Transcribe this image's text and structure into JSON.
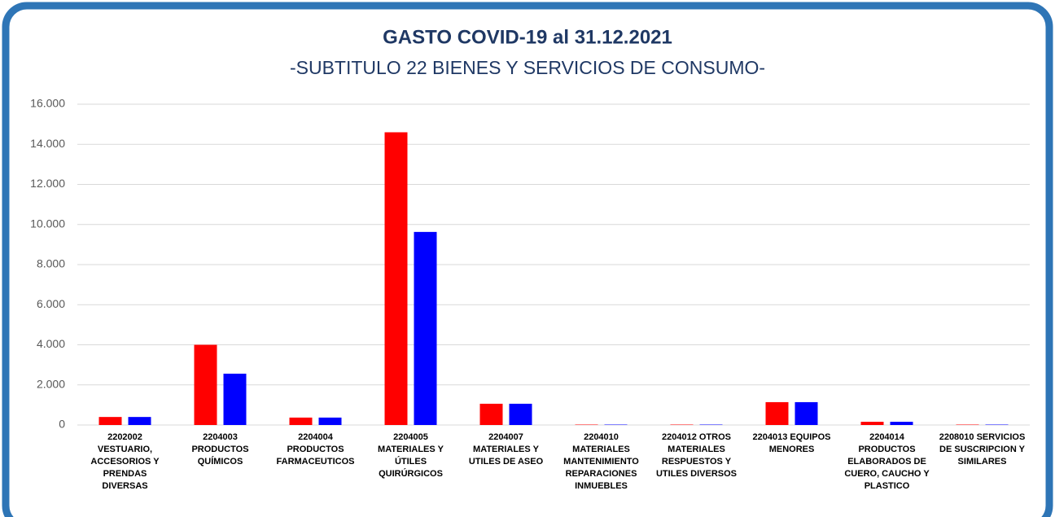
{
  "chart_data": {
    "type": "bar",
    "title": "GASTO COVID-19  al 31.12.2021",
    "subtitle": "-SUBTITULO 22 BIENES Y SERVICIOS DE CONSUMO-",
    "categories": [
      "2202002 VESTUARIO, ACCESORIOS Y PRENDAS DIVERSAS",
      "2204003 PRODUCTOS QUÍMICOS",
      "2204004 PRODUCTOS FARMACEUTICOS",
      "2204005 MATERIALES Y ÚTILES QUIRÚRGICOS",
      "2204007 MATERIALES Y UTILES DE ASEO",
      "2204010 MATERIALES MANTENIMIENTO REPARACIONES INMUEBLES",
      "2204012 OTROS MATERIALES RESPUESTOS Y UTILES DIVERSOS",
      "2204013 EQUIPOS MENORES",
      "2204014 PRODUCTOS ELABORADOS DE CUERO, CAUCHO Y PLASTICO",
      "2208010 SERVICIOS DE SUSCRIPCION Y SIMILARES"
    ],
    "series": [
      {
        "color": "#ff0000",
        "values": [
          400,
          4000,
          370,
          14600,
          1060,
          20,
          20,
          1140,
          160,
          20
        ]
      },
      {
        "color": "#0000ff",
        "values": [
          400,
          2560,
          370,
          9630,
          1060,
          20,
          20,
          1140,
          160,
          20
        ]
      }
    ],
    "ylim": [
      0,
      16000
    ],
    "yticks": [
      0,
      {
        "value": 2000,
        "label": "2.000"
      },
      {
        "value": 4000,
        "label": "4.000"
      },
      {
        "value": 6000,
        "label": "6.000"
      },
      {
        "value": 8000,
        "label": "8.000"
      },
      {
        "value": 10000,
        "label": "10.000"
      },
      {
        "value": 12000,
        "label": "12.000"
      },
      {
        "value": 14000,
        "label": "14.000"
      },
      {
        "value": 16000,
        "label": "16.000"
      }
    ],
    "grid": true
  }
}
